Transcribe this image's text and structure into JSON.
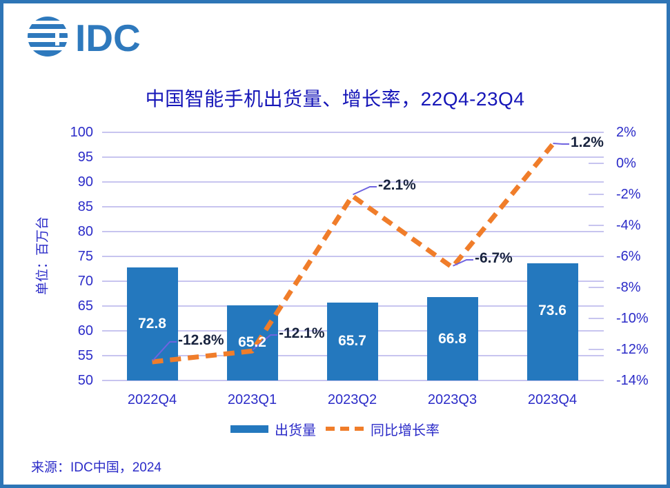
{
  "logo": {
    "text": "IDC"
  },
  "title": "中国智能手机出货量、增长率，22Q4-23Q4",
  "source": "来源：IDC中国，2024",
  "colors": {
    "frame": "#2E75B6",
    "logo": "#2E79BD",
    "bar-blue": "#2478BE",
    "line-orange": "#F07D2A",
    "grid": "#C7C4EF",
    "axis-text": "#2B2BC8",
    "title-text": "#1616B8",
    "label-dark": "#18233E",
    "leader": "#6F63E0",
    "bar-label": "#FFFFFF"
  },
  "chart_data": {
    "type": "combo-bar-line",
    "title": "中国智能手机出货量、增长率，22Q4-23Q4",
    "categories": [
      "2022Q4",
      "2023Q1",
      "2023Q2",
      "2023Q3",
      "2023Q4"
    ],
    "series": [
      {
        "name": "出货量",
        "type": "bar",
        "axis": "left",
        "unit": "百万台",
        "values": [
          72.8,
          65.2,
          65.7,
          66.8,
          73.6
        ],
        "data_labels": [
          "72.8",
          "65.2",
          "65.7",
          "66.8",
          "73.6"
        ]
      },
      {
        "name": "同比增长率",
        "type": "line",
        "style": "dashed",
        "axis": "right",
        "unit": "%",
        "values": [
          -12.8,
          -12.1,
          -2.1,
          -6.7,
          1.2
        ],
        "data_labels": [
          "-12.8%",
          "-12.1%",
          "-2.1%",
          "-6.7%",
          "1.2%"
        ]
      }
    ],
    "left_axis": {
      "label": "单位：百万台",
      "min": 50,
      "max": 100,
      "step": 5,
      "ticks": [
        "100",
        "95",
        "90",
        "85",
        "80",
        "75",
        "70",
        "65",
        "60",
        "55",
        "50"
      ]
    },
    "right_axis": {
      "min": -14,
      "max": 2,
      "step": 2,
      "ticks": [
        "2%",
        "0%",
        "-2%",
        "-4%",
        "-6%",
        "-8%",
        "-10%",
        "-12%",
        "-14%"
      ]
    },
    "grid": true,
    "legend_position": "bottom"
  }
}
